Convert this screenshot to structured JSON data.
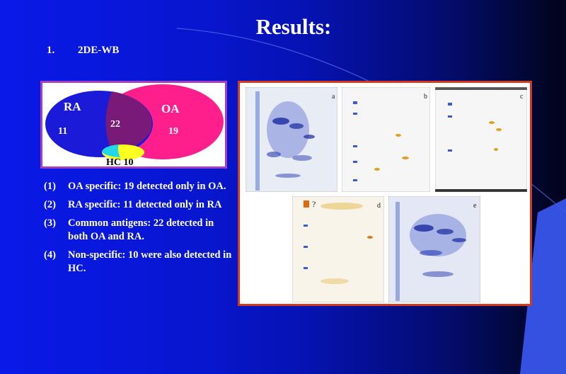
{
  "slide": {
    "title": "Results:",
    "section_number": "1.",
    "section_title": "2DE-WB"
  },
  "venn": {
    "ra_label": "RA",
    "oa_label": "OA",
    "ra_only": "11",
    "common": "22",
    "oa_only": "19",
    "hc_label": "HC 10",
    "colors": {
      "ra": "#1a1ad8",
      "oa": "#ff1f8c",
      "overlap": "#7a1a78",
      "hc": "#ffff22",
      "hc_overlap": "#22d8e8"
    }
  },
  "findings": [
    {
      "num": "(1)",
      "text": "OA specific: 19 detected only in OA."
    },
    {
      "num": "(2)",
      "text": "RA specific: 11 detected only in RA"
    },
    {
      "num": "(3)",
      "text": "Common antigens: 22 detected in both OA and RA."
    },
    {
      "num": "(4)",
      "text": "Non-specific: 10 were also detected in HC."
    }
  ],
  "gels": {
    "letters": [
      "a",
      "b",
      "c",
      "d",
      "e"
    ],
    "question_mark": "?"
  }
}
